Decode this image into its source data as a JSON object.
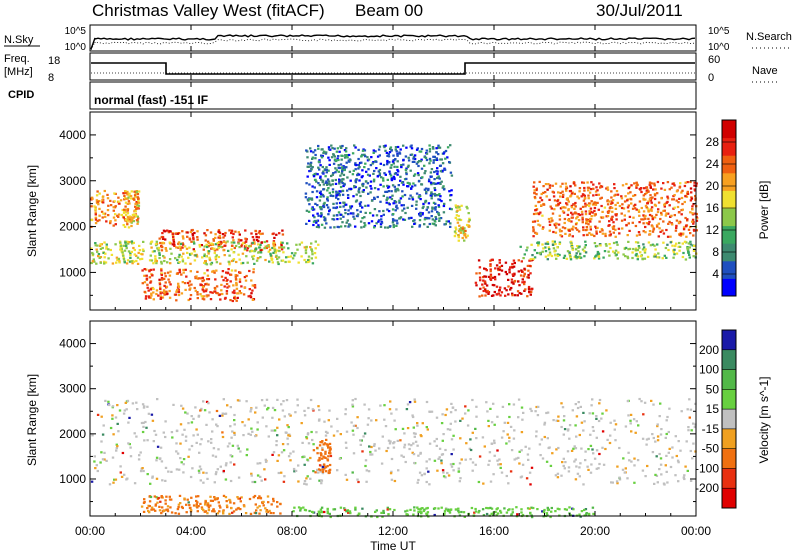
{
  "header": {
    "title": "Christmas Valley West (fitACF)",
    "beam": "Beam 00",
    "date": "30/Jul/2011"
  },
  "top_panels": {
    "nsky": {
      "label": "N.Sky",
      "ticks": [
        "10^5",
        "10^0"
      ]
    },
    "nsearch": {
      "label": "N.Search",
      "ticks": [
        "10^5",
        "10^0"
      ]
    },
    "freq": {
      "label_line1": "Freq.",
      "label_line2": "[MHz]",
      "ticks": [
        "18",
        "8"
      ]
    },
    "nave": {
      "label": "Nave",
      "ticks": [
        "60",
        "0"
      ]
    },
    "cpid": {
      "label": "CPID",
      "value": "normal (fast) -151 IF"
    }
  },
  "chart_data": [
    {
      "type": "heatmap",
      "name": "power-panel",
      "ylabel": "Slant Range [km]",
      "xlabel": "Time UT",
      "x_ticks": [
        "00:00",
        "04:00",
        "08:00",
        "12:00",
        "16:00",
        "20:00",
        "00:00"
      ],
      "y_ticks": [
        1000,
        2000,
        3000,
        4000
      ],
      "ylim": [
        180,
        4500
      ],
      "xlim_hours": [
        0,
        24
      ],
      "colorbar": {
        "label": "Power [dB]",
        "ticks": [
          4,
          8,
          12,
          16,
          20,
          24,
          28
        ],
        "range": [
          0,
          32
        ],
        "colors": [
          "#0000ff",
          "#1f4fbf",
          "#3d8a70",
          "#3aa860",
          "#8cc84a",
          "#f0e030",
          "#f8a020",
          "#f06010",
          "#e82010",
          "#d00000"
        ]
      },
      "features": [
        {
          "hours": [
            0.0,
            1.9
          ],
          "range_km": [
            2000,
            2800
          ],
          "power_db": 22
        },
        {
          "hours": [
            1.3,
            1.9
          ],
          "range_km": [
            2100,
            2800
          ],
          "power_db": 20
        },
        {
          "hours": [
            2.7,
            7.6
          ],
          "range_km": [
            1500,
            1950
          ],
          "power_db": 26
        },
        {
          "hours": [
            0.0,
            9.0
          ],
          "range_km": [
            1200,
            1700
          ],
          "power_db": 16
        },
        {
          "hours": [
            2.0,
            6.5
          ],
          "range_km": [
            400,
            1100
          ],
          "power_db": 24
        },
        {
          "hours": [
            8.5,
            14.3
          ],
          "range_km": [
            2000,
            3800
          ],
          "power_db": 6
        },
        {
          "hours": [
            14.4,
            15.0
          ],
          "range_km": [
            1700,
            2500
          ],
          "power_db": 18
        },
        {
          "hours": [
            15.2,
            17.5
          ],
          "range_km": [
            500,
            1300
          ],
          "power_db": 28
        },
        {
          "hours": [
            17.0,
            24.0
          ],
          "range_km": [
            1300,
            1700
          ],
          "power_db": 14
        },
        {
          "hours": [
            17.5,
            24.0
          ],
          "range_km": [
            1800,
            3000
          ],
          "power_db": 24
        }
      ]
    },
    {
      "type": "heatmap",
      "name": "velocity-panel",
      "ylabel": "Slant Range [km]",
      "xlabel": "Time UT",
      "x_ticks": [
        "00:00",
        "04:00",
        "08:00",
        "12:00",
        "16:00",
        "20:00",
        "00:00"
      ],
      "y_ticks": [
        1000,
        2000,
        3000,
        4000
      ],
      "ylim": [
        180,
        4500
      ],
      "xlim_hours": [
        0,
        24
      ],
      "colorbar": {
        "label": "Velocity [m s^-1]",
        "ticks": [
          200,
          100,
          50,
          15,
          -15,
          -50,
          -100,
          -200
        ],
        "colors": [
          "#1a1aa8",
          "#3a8a60",
          "#52b848",
          "#68d040",
          "#c0c0c0",
          "#f0a020",
          "#f07010",
          "#e83010",
          "#e00000"
        ]
      },
      "features": [
        {
          "hours": [
            0.0,
            24.0
          ],
          "range_km": [
            900,
            2800
          ],
          "velocity": 0
        },
        {
          "hours": [
            8.8,
            9.5
          ],
          "range_km": [
            1100,
            1900
          ],
          "velocity": -80
        },
        {
          "hours": [
            2.0,
            7.5
          ],
          "range_km": [
            250,
            650
          ],
          "velocity": -60
        },
        {
          "hours": [
            8.0,
            20.0
          ],
          "range_km": [
            180,
            400
          ],
          "velocity": 40
        }
      ]
    }
  ]
}
